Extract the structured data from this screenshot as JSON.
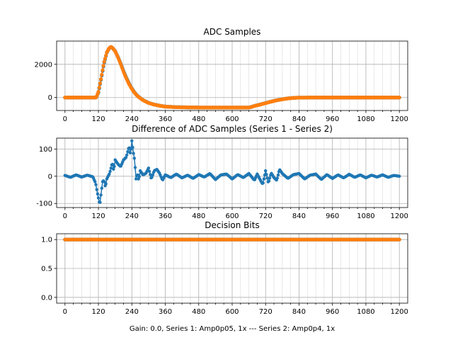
{
  "chart_data": [
    {
      "type": "line",
      "title": "ADC Samples",
      "xlabel": "",
      "ylabel": "",
      "xlim": [
        -30,
        1230
      ],
      "ylim": [
        -780,
        3400
      ],
      "xticks": [
        0,
        120,
        240,
        360,
        480,
        600,
        720,
        840,
        960,
        1080,
        1200
      ],
      "yticks": [
        0,
        2000
      ],
      "grid": true,
      "colors": [
        "#1f77b4",
        "#ff7f0e"
      ],
      "series": [
        {
          "x": [
            0,
            100,
            112,
            120,
            130,
            140,
            150,
            160,
            166,
            170,
            180,
            190,
            200,
            210,
            220,
            230,
            240,
            250,
            260,
            280,
            300,
            320,
            340,
            360,
            400,
            440,
            480,
            520,
            560,
            600,
            640,
            660,
            670,
            680,
            700,
            720,
            740,
            760,
            780,
            800,
            820,
            840,
            880,
            960,
            1080,
            1200
          ],
          "values": [
            0,
            0,
            0,
            300,
            1150,
            2050,
            2700,
            3000,
            3050,
            3000,
            2800,
            2450,
            2050,
            1600,
            1200,
            850,
            550,
            300,
            100,
            -150,
            -320,
            -420,
            -490,
            -540,
            -580,
            -590,
            -600,
            -600,
            -600,
            -600,
            -600,
            -600,
            -560,
            -500,
            -420,
            -330,
            -240,
            -160,
            -100,
            -50,
            -20,
            -5,
            0,
            0,
            0,
            0
          ]
        },
        {
          "x": [
            0,
            100,
            112,
            120,
            130,
            140,
            150,
            160,
            166,
            170,
            180,
            190,
            200,
            210,
            220,
            230,
            240,
            250,
            260,
            280,
            300,
            320,
            340,
            360,
            400,
            440,
            480,
            520,
            560,
            600,
            640,
            660,
            670,
            680,
            700,
            720,
            740,
            760,
            780,
            800,
            820,
            840,
            880,
            960,
            1080,
            1200
          ],
          "values": [
            0,
            0,
            0,
            350,
            1200,
            2100,
            2720,
            3010,
            3060,
            3000,
            2790,
            2430,
            2020,
            1560,
            1160,
            810,
            520,
            280,
            90,
            -160,
            -325,
            -425,
            -495,
            -545,
            -582,
            -592,
            -600,
            -600,
            -600,
            -600,
            -600,
            -600,
            -565,
            -505,
            -425,
            -335,
            -245,
            -165,
            -105,
            -52,
            -22,
            -6,
            0,
            0,
            0,
            0
          ]
        }
      ]
    },
    {
      "type": "line",
      "title": "Difference of ADC Samples (Series 1 - Series 2)",
      "xlabel": "",
      "ylabel": "",
      "xlim": [
        -30,
        1230
      ],
      "ylim": [
        -115,
        140
      ],
      "xticks": [
        0,
        120,
        240,
        360,
        480,
        600,
        720,
        840,
        960,
        1080,
        1200
      ],
      "yticks": [
        -100,
        0,
        100
      ],
      "grid": true,
      "colors": [
        "#1f77b4"
      ],
      "series": [
        {
          "x": [
            0,
            20,
            40,
            60,
            80,
            100,
            110,
            115,
            120,
            125,
            130,
            135,
            140,
            145,
            150,
            160,
            165,
            170,
            175,
            180,
            190,
            200,
            210,
            220,
            230,
            235,
            240,
            245,
            250,
            255,
            260,
            265,
            270,
            280,
            290,
            300,
            310,
            320,
            330,
            340,
            350,
            360,
            380,
            400,
            420,
            440,
            460,
            480,
            500,
            520,
            540,
            560,
            580,
            600,
            620,
            640,
            660,
            680,
            690,
            700,
            710,
            720,
            730,
            740,
            750,
            760,
            770,
            780,
            800,
            820,
            840,
            860,
            880,
            900,
            920,
            940,
            960,
            980,
            1000,
            1020,
            1040,
            1060,
            1080,
            1100,
            1120,
            1140,
            1160,
            1180,
            1200
          ],
          "values": [
            3,
            -4,
            5,
            -3,
            4,
            -2,
            -25,
            -55,
            -80,
            -105,
            -60,
            -20,
            -15,
            -40,
            -10,
            10,
            30,
            50,
            20,
            60,
            45,
            35,
            60,
            70,
            110,
            80,
            130,
            90,
            60,
            -10,
            10,
            -15,
            20,
            5,
            10,
            30,
            -10,
            20,
            25,
            10,
            -15,
            5,
            -5,
            8,
            -6,
            4,
            -8,
            6,
            -3,
            10,
            -12,
            5,
            8,
            -10,
            6,
            -5,
            10,
            -15,
            8,
            -12,
            -30,
            20,
            -25,
            12,
            -5,
            -15,
            25,
            10,
            -8,
            6,
            10,
            -10,
            4,
            8,
            -12,
            6,
            -8,
            5,
            -6,
            7,
            -4,
            5,
            -6,
            4,
            -3,
            5,
            -4,
            3,
            0
          ]
        }
      ]
    },
    {
      "type": "line",
      "title": "Decision Bits",
      "xlabel": "Gain: 0.0, Series 1: Amp0p05, 1x --- Series 2: Amp0p4, 1x",
      "ylabel": "",
      "xlim": [
        -30,
        1230
      ],
      "ylim": [
        -0.1,
        1.1
      ],
      "xticks": [
        0,
        120,
        240,
        360,
        480,
        600,
        720,
        840,
        960,
        1080,
        1200
      ],
      "yticks": [
        0.0,
        0.5,
        1.0
      ],
      "ytick_labels": [
        "0.0",
        "0.5",
        "1.0"
      ],
      "grid": true,
      "colors": [
        "#1f77b4",
        "#ff7f0e"
      ],
      "series": [
        {
          "x": [
            0,
            1200
          ],
          "values": [
            1,
            1
          ]
        },
        {
          "x": [
            0,
            1200
          ],
          "values": [
            1,
            1
          ]
        }
      ]
    }
  ]
}
